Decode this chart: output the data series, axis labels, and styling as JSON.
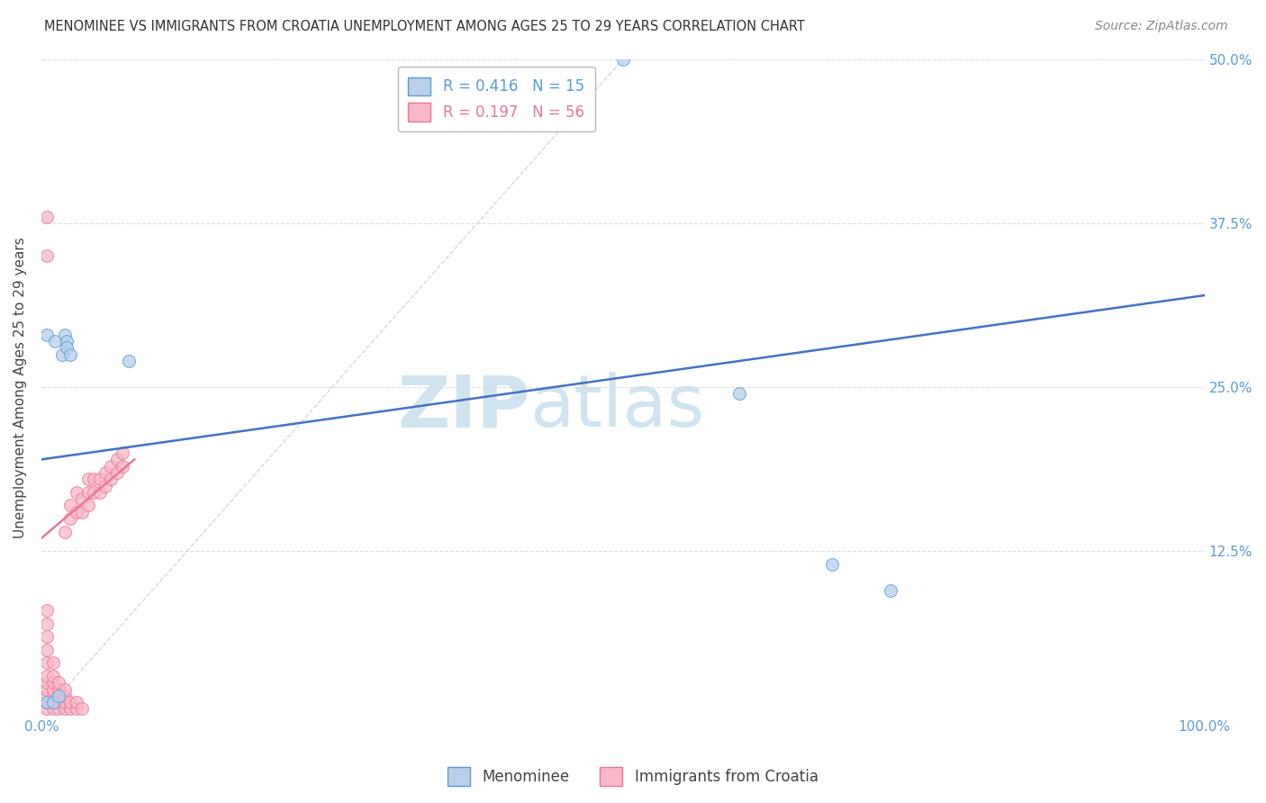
{
  "title": "MENOMINEE VS IMMIGRANTS FROM CROATIA UNEMPLOYMENT AMONG AGES 25 TO 29 YEARS CORRELATION CHART",
  "source": "Source: ZipAtlas.com",
  "ylabel": "Unemployment Among Ages 25 to 29 years",
  "xlim": [
    0,
    1.0
  ],
  "ylim": [
    0,
    0.5
  ],
  "yticks": [
    0,
    0.125,
    0.25,
    0.375,
    0.5
  ],
  "ytick_labels": [
    "",
    "12.5%",
    "25.0%",
    "37.5%",
    "50.0%"
  ],
  "xticks": [
    0,
    0.1,
    0.2,
    0.3,
    0.4,
    0.5,
    0.6,
    0.7,
    0.8,
    0.9,
    1.0
  ],
  "xtick_labels": [
    "0.0%",
    "",
    "",
    "",
    "",
    "",
    "",
    "",
    "",
    "",
    "100.0%"
  ],
  "menominee_R": 0.416,
  "menominee_N": 15,
  "croatia_R": 0.197,
  "croatia_N": 56,
  "menominee_color": "#b8d0ea",
  "croatia_color": "#f8b8c8",
  "menominee_edge_color": "#5b9bd5",
  "croatia_edge_color": "#e87898",
  "trend_blue_color": "#4472c4",
  "trend_pink_color": "#e87898",
  "reference_line_color": "#c8c8c8",
  "background_color": "#ffffff",
  "grid_color": "#d8d8d8",
  "axis_color": "#5b9bd5",
  "watermark_color": "#d0e4f0",
  "menominee_x": [
    0.005,
    0.012,
    0.018,
    0.02,
    0.022,
    0.022,
    0.025,
    0.075,
    0.005,
    0.01,
    0.015,
    0.6,
    0.68,
    0.73,
    0.5
  ],
  "menominee_y": [
    0.29,
    0.285,
    0.275,
    0.29,
    0.285,
    0.28,
    0.275,
    0.27,
    0.01,
    0.01,
    0.015,
    0.245,
    0.115,
    0.095,
    0.5
  ],
  "croatia_x": [
    0.005,
    0.005,
    0.005,
    0.005,
    0.005,
    0.005,
    0.005,
    0.005,
    0.005,
    0.005,
    0.005,
    0.01,
    0.01,
    0.01,
    0.01,
    0.01,
    0.01,
    0.01,
    0.015,
    0.015,
    0.015,
    0.015,
    0.015,
    0.02,
    0.02,
    0.02,
    0.02,
    0.02,
    0.025,
    0.025,
    0.025,
    0.025,
    0.03,
    0.03,
    0.03,
    0.03,
    0.035,
    0.035,
    0.035,
    0.04,
    0.04,
    0.04,
    0.045,
    0.045,
    0.05,
    0.05,
    0.055,
    0.055,
    0.06,
    0.06,
    0.065,
    0.065,
    0.07,
    0.07,
    0.005,
    0.005
  ],
  "croatia_y": [
    0.005,
    0.01,
    0.015,
    0.02,
    0.025,
    0.03,
    0.04,
    0.05,
    0.06,
    0.07,
    0.08,
    0.005,
    0.01,
    0.015,
    0.02,
    0.025,
    0.03,
    0.04,
    0.005,
    0.01,
    0.015,
    0.02,
    0.025,
    0.005,
    0.01,
    0.015,
    0.02,
    0.14,
    0.005,
    0.01,
    0.15,
    0.16,
    0.005,
    0.01,
    0.155,
    0.17,
    0.005,
    0.155,
    0.165,
    0.16,
    0.17,
    0.18,
    0.17,
    0.18,
    0.17,
    0.18,
    0.175,
    0.185,
    0.18,
    0.19,
    0.185,
    0.195,
    0.19,
    0.2,
    0.38,
    0.35
  ],
  "menominee_trend_x": [
    0.0,
    1.0
  ],
  "menominee_trend_y": [
    0.195,
    0.32
  ],
  "croatia_trend_x": [
    0.0,
    0.08
  ],
  "croatia_trend_y": [
    0.135,
    0.195
  ],
  "dot_size": 100
}
